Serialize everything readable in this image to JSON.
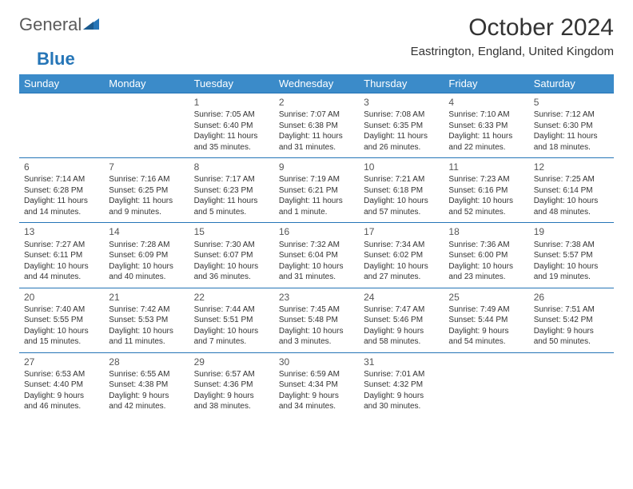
{
  "brand": {
    "part1": "General",
    "part2": "Blue"
  },
  "title": "October 2024",
  "location": "Eastrington, England, United Kingdom",
  "colors": {
    "header_bg": "#3b8bc9",
    "header_text": "#ffffff",
    "row_border": "#2575b7",
    "text": "#333333",
    "background": "#ffffff"
  },
  "weekdays": [
    "Sunday",
    "Monday",
    "Tuesday",
    "Wednesday",
    "Thursday",
    "Friday",
    "Saturday"
  ],
  "weeks": [
    [
      null,
      null,
      {
        "n": "1",
        "sr": "Sunrise: 7:05 AM",
        "ss": "Sunset: 6:40 PM",
        "dl": "Daylight: 11 hours and 35 minutes."
      },
      {
        "n": "2",
        "sr": "Sunrise: 7:07 AM",
        "ss": "Sunset: 6:38 PM",
        "dl": "Daylight: 11 hours and 31 minutes."
      },
      {
        "n": "3",
        "sr": "Sunrise: 7:08 AM",
        "ss": "Sunset: 6:35 PM",
        "dl": "Daylight: 11 hours and 26 minutes."
      },
      {
        "n": "4",
        "sr": "Sunrise: 7:10 AM",
        "ss": "Sunset: 6:33 PM",
        "dl": "Daylight: 11 hours and 22 minutes."
      },
      {
        "n": "5",
        "sr": "Sunrise: 7:12 AM",
        "ss": "Sunset: 6:30 PM",
        "dl": "Daylight: 11 hours and 18 minutes."
      }
    ],
    [
      {
        "n": "6",
        "sr": "Sunrise: 7:14 AM",
        "ss": "Sunset: 6:28 PM",
        "dl": "Daylight: 11 hours and 14 minutes."
      },
      {
        "n": "7",
        "sr": "Sunrise: 7:16 AM",
        "ss": "Sunset: 6:25 PM",
        "dl": "Daylight: 11 hours and 9 minutes."
      },
      {
        "n": "8",
        "sr": "Sunrise: 7:17 AM",
        "ss": "Sunset: 6:23 PM",
        "dl": "Daylight: 11 hours and 5 minutes."
      },
      {
        "n": "9",
        "sr": "Sunrise: 7:19 AM",
        "ss": "Sunset: 6:21 PM",
        "dl": "Daylight: 11 hours and 1 minute."
      },
      {
        "n": "10",
        "sr": "Sunrise: 7:21 AM",
        "ss": "Sunset: 6:18 PM",
        "dl": "Daylight: 10 hours and 57 minutes."
      },
      {
        "n": "11",
        "sr": "Sunrise: 7:23 AM",
        "ss": "Sunset: 6:16 PM",
        "dl": "Daylight: 10 hours and 52 minutes."
      },
      {
        "n": "12",
        "sr": "Sunrise: 7:25 AM",
        "ss": "Sunset: 6:14 PM",
        "dl": "Daylight: 10 hours and 48 minutes."
      }
    ],
    [
      {
        "n": "13",
        "sr": "Sunrise: 7:27 AM",
        "ss": "Sunset: 6:11 PM",
        "dl": "Daylight: 10 hours and 44 minutes."
      },
      {
        "n": "14",
        "sr": "Sunrise: 7:28 AM",
        "ss": "Sunset: 6:09 PM",
        "dl": "Daylight: 10 hours and 40 minutes."
      },
      {
        "n": "15",
        "sr": "Sunrise: 7:30 AM",
        "ss": "Sunset: 6:07 PM",
        "dl": "Daylight: 10 hours and 36 minutes."
      },
      {
        "n": "16",
        "sr": "Sunrise: 7:32 AM",
        "ss": "Sunset: 6:04 PM",
        "dl": "Daylight: 10 hours and 31 minutes."
      },
      {
        "n": "17",
        "sr": "Sunrise: 7:34 AM",
        "ss": "Sunset: 6:02 PM",
        "dl": "Daylight: 10 hours and 27 minutes."
      },
      {
        "n": "18",
        "sr": "Sunrise: 7:36 AM",
        "ss": "Sunset: 6:00 PM",
        "dl": "Daylight: 10 hours and 23 minutes."
      },
      {
        "n": "19",
        "sr": "Sunrise: 7:38 AM",
        "ss": "Sunset: 5:57 PM",
        "dl": "Daylight: 10 hours and 19 minutes."
      }
    ],
    [
      {
        "n": "20",
        "sr": "Sunrise: 7:40 AM",
        "ss": "Sunset: 5:55 PM",
        "dl": "Daylight: 10 hours and 15 minutes."
      },
      {
        "n": "21",
        "sr": "Sunrise: 7:42 AM",
        "ss": "Sunset: 5:53 PM",
        "dl": "Daylight: 10 hours and 11 minutes."
      },
      {
        "n": "22",
        "sr": "Sunrise: 7:44 AM",
        "ss": "Sunset: 5:51 PM",
        "dl": "Daylight: 10 hours and 7 minutes."
      },
      {
        "n": "23",
        "sr": "Sunrise: 7:45 AM",
        "ss": "Sunset: 5:48 PM",
        "dl": "Daylight: 10 hours and 3 minutes."
      },
      {
        "n": "24",
        "sr": "Sunrise: 7:47 AM",
        "ss": "Sunset: 5:46 PM",
        "dl": "Daylight: 9 hours and 58 minutes."
      },
      {
        "n": "25",
        "sr": "Sunrise: 7:49 AM",
        "ss": "Sunset: 5:44 PM",
        "dl": "Daylight: 9 hours and 54 minutes."
      },
      {
        "n": "26",
        "sr": "Sunrise: 7:51 AM",
        "ss": "Sunset: 5:42 PM",
        "dl": "Daylight: 9 hours and 50 minutes."
      }
    ],
    [
      {
        "n": "27",
        "sr": "Sunrise: 6:53 AM",
        "ss": "Sunset: 4:40 PM",
        "dl": "Daylight: 9 hours and 46 minutes."
      },
      {
        "n": "28",
        "sr": "Sunrise: 6:55 AM",
        "ss": "Sunset: 4:38 PM",
        "dl": "Daylight: 9 hours and 42 minutes."
      },
      {
        "n": "29",
        "sr": "Sunrise: 6:57 AM",
        "ss": "Sunset: 4:36 PM",
        "dl": "Daylight: 9 hours and 38 minutes."
      },
      {
        "n": "30",
        "sr": "Sunrise: 6:59 AM",
        "ss": "Sunset: 4:34 PM",
        "dl": "Daylight: 9 hours and 34 minutes."
      },
      {
        "n": "31",
        "sr": "Sunrise: 7:01 AM",
        "ss": "Sunset: 4:32 PM",
        "dl": "Daylight: 9 hours and 30 minutes."
      },
      null,
      null
    ]
  ]
}
